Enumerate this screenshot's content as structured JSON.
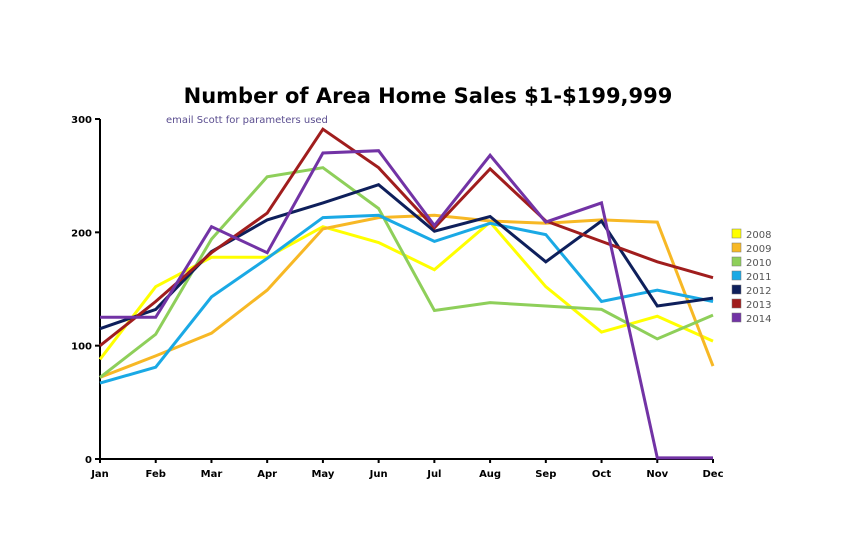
{
  "chart_data": {
    "type": "line",
    "title": "Number of Area Home Sales $1-$199,999",
    "subtitle": "email Scott for parameters used",
    "xlabel": "",
    "ylabel": "",
    "categories": [
      "Jan",
      "Feb",
      "Mar",
      "Apr",
      "May",
      "Jun",
      "Jul",
      "Aug",
      "Sep",
      "Oct",
      "Nov",
      "Dec"
    ],
    "ylim": [
      0,
      300
    ],
    "yticks": [
      "0",
      "100",
      "200",
      "300"
    ],
    "grid": false,
    "legend_position": "right",
    "series": [
      {
        "name": "2008",
        "color": "#ffff00",
        "values": [
          88,
          152,
          178,
          178,
          205,
          191,
          167,
          209,
          152,
          112,
          126,
          104
        ]
      },
      {
        "name": "2009",
        "color": "#f7b825",
        "values": [
          72,
          91,
          111,
          149,
          203,
          213,
          215,
          210,
          208,
          211,
          209,
          82
        ]
      },
      {
        "name": "2010",
        "color": "#8ecf5a",
        "values": [
          72,
          110,
          194,
          249,
          257,
          221,
          131,
          138,
          135,
          132,
          106,
          127
        ]
      },
      {
        "name": "2011",
        "color": "#1aa9e5",
        "values": [
          67,
          81,
          143,
          177,
          213,
          215,
          192,
          208,
          198,
          139,
          149,
          139
        ]
      },
      {
        "name": "2012",
        "color": "#0e1f5b",
        "values": [
          115,
          132,
          183,
          211,
          226,
          242,
          201,
          214,
          174,
          210,
          135,
          142
        ]
      },
      {
        "name": "2013",
        "color": "#a01d1d",
        "values": [
          100,
          139,
          182,
          217,
          291,
          257,
          204,
          256,
          210,
          192,
          174,
          160
        ]
      },
      {
        "name": "2014",
        "color": "#7233a5",
        "values": [
          125,
          125,
          205,
          182,
          270,
          272,
          206,
          268,
          209,
          226,
          1,
          1
        ]
      }
    ]
  }
}
